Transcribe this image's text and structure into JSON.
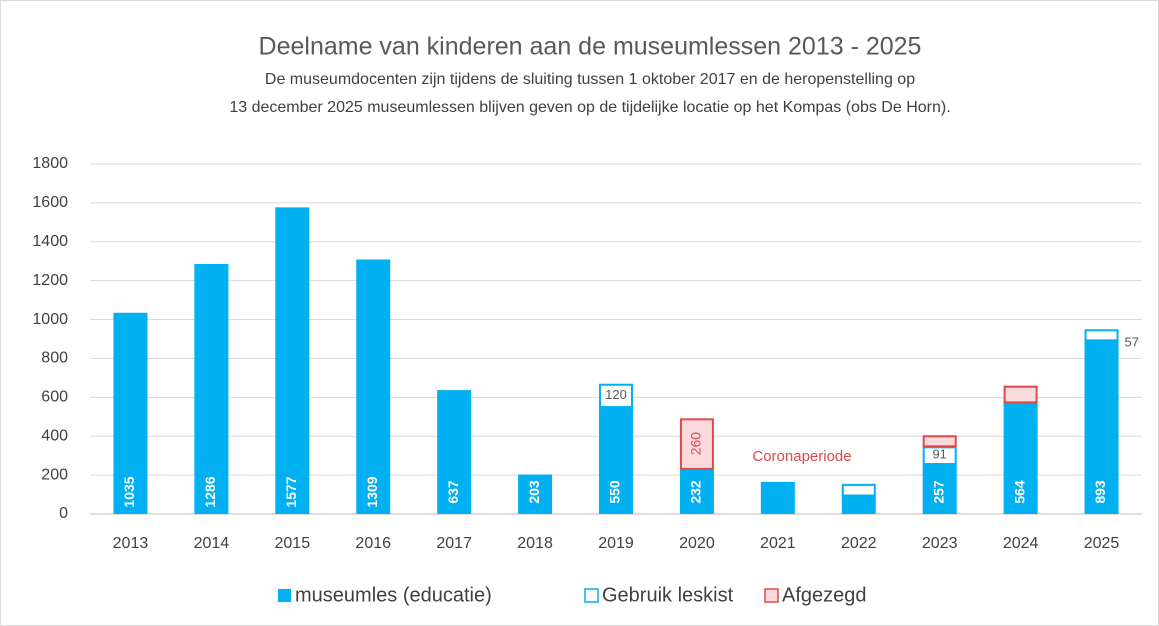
{
  "chart_data": {
    "type": "bar",
    "stacked": true,
    "title": "Deelname van kinderen aan de museumlessen 2013 - 2025",
    "subtitle": [
      "De museumdocenten zijn tijdens de sluiting tussen 1 oktober 2017 en de heropenstelling op",
      "13 december 2025 museumlessen blijven geven op de tijdelijke locatie op het Kompas (obs De Horn)."
    ],
    "annotation": "Coronaperiode",
    "categories": [
      "2013",
      "2014",
      "2015",
      "2016",
      "2017",
      "2018",
      "2019",
      "2020",
      "2021",
      "2022",
      "2023",
      "2024",
      "2025"
    ],
    "series": [
      {
        "name": "museumles (educatie)",
        "color": "#00b0f0",
        "fill": "#00b0f0",
        "values": [
          1035,
          1286,
          1577,
          1309,
          637,
          203,
          550,
          232,
          165,
          95,
          257,
          564,
          893
        ],
        "value_labels": [
          "1035",
          "1286",
          "1577",
          "1309",
          "637",
          "203",
          "550",
          "232",
          null,
          null,
          "257",
          "564",
          "893"
        ]
      },
      {
        "name": "Gebruik leskist",
        "color": "#00b0f0",
        "fill": "#ffffff",
        "values": [
          null,
          null,
          null,
          null,
          null,
          null,
          120,
          null,
          null,
          60,
          91,
          10,
          57
        ],
        "value_labels": [
          null,
          null,
          null,
          null,
          null,
          null,
          "120",
          null,
          null,
          null,
          "91",
          null,
          "57"
        ]
      },
      {
        "name": "Afgezegd",
        "color": "#e04848",
        "fill": "#fadadd",
        "values": [
          null,
          null,
          null,
          null,
          null,
          null,
          null,
          260,
          null,
          null,
          57,
          86,
          null
        ],
        "value_labels": [
          null,
          null,
          null,
          null,
          null,
          null,
          null,
          "260",
          null,
          null,
          null,
          null,
          null
        ]
      }
    ],
    "ylim": [
      0,
      1800
    ],
    "yticks": [
      0,
      200,
      400,
      600,
      800,
      1000,
      1200,
      1400,
      1600,
      1800
    ],
    "grid": true,
    "legend": "bottom"
  }
}
